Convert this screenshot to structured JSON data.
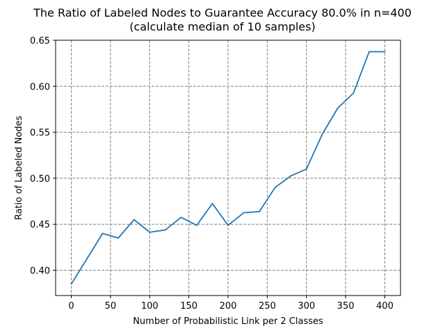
{
  "chart_data": {
    "type": "line",
    "title": "The Ratio of Labeled Nodes to Guarantee Accuracy 80.0% in n=400",
    "subtitle": "(calculate median of 10 samples)",
    "xlabel": "Number of Probabilistic Link per 2 Classes",
    "ylabel": "Ratio of Labeled Nodes",
    "xlim": [
      -20,
      420
    ],
    "ylim": [
      0.3725,
      0.65
    ],
    "xticks": [
      0,
      50,
      100,
      150,
      200,
      250,
      300,
      350,
      400
    ],
    "yticks": [
      0.4,
      0.45,
      0.5,
      0.55,
      0.6,
      0.65
    ],
    "grid": true,
    "line_color": "#1f77b4",
    "series": [
      {
        "x": [
          0,
          20,
          40,
          60,
          80,
          100,
          120,
          140,
          160,
          180,
          200,
          220,
          240,
          260,
          280,
          300,
          320,
          340,
          360,
          380,
          400
        ],
        "values": [
          0.385,
          0.4125,
          0.44,
          0.435,
          0.455,
          0.4413,
          0.4438,
          0.4575,
          0.4488,
          0.4725,
          0.4488,
          0.4625,
          0.4638,
          0.49,
          0.5025,
          0.51,
          0.5475,
          0.5763,
          0.5925,
          0.6375,
          0.6375
        ]
      }
    ]
  }
}
